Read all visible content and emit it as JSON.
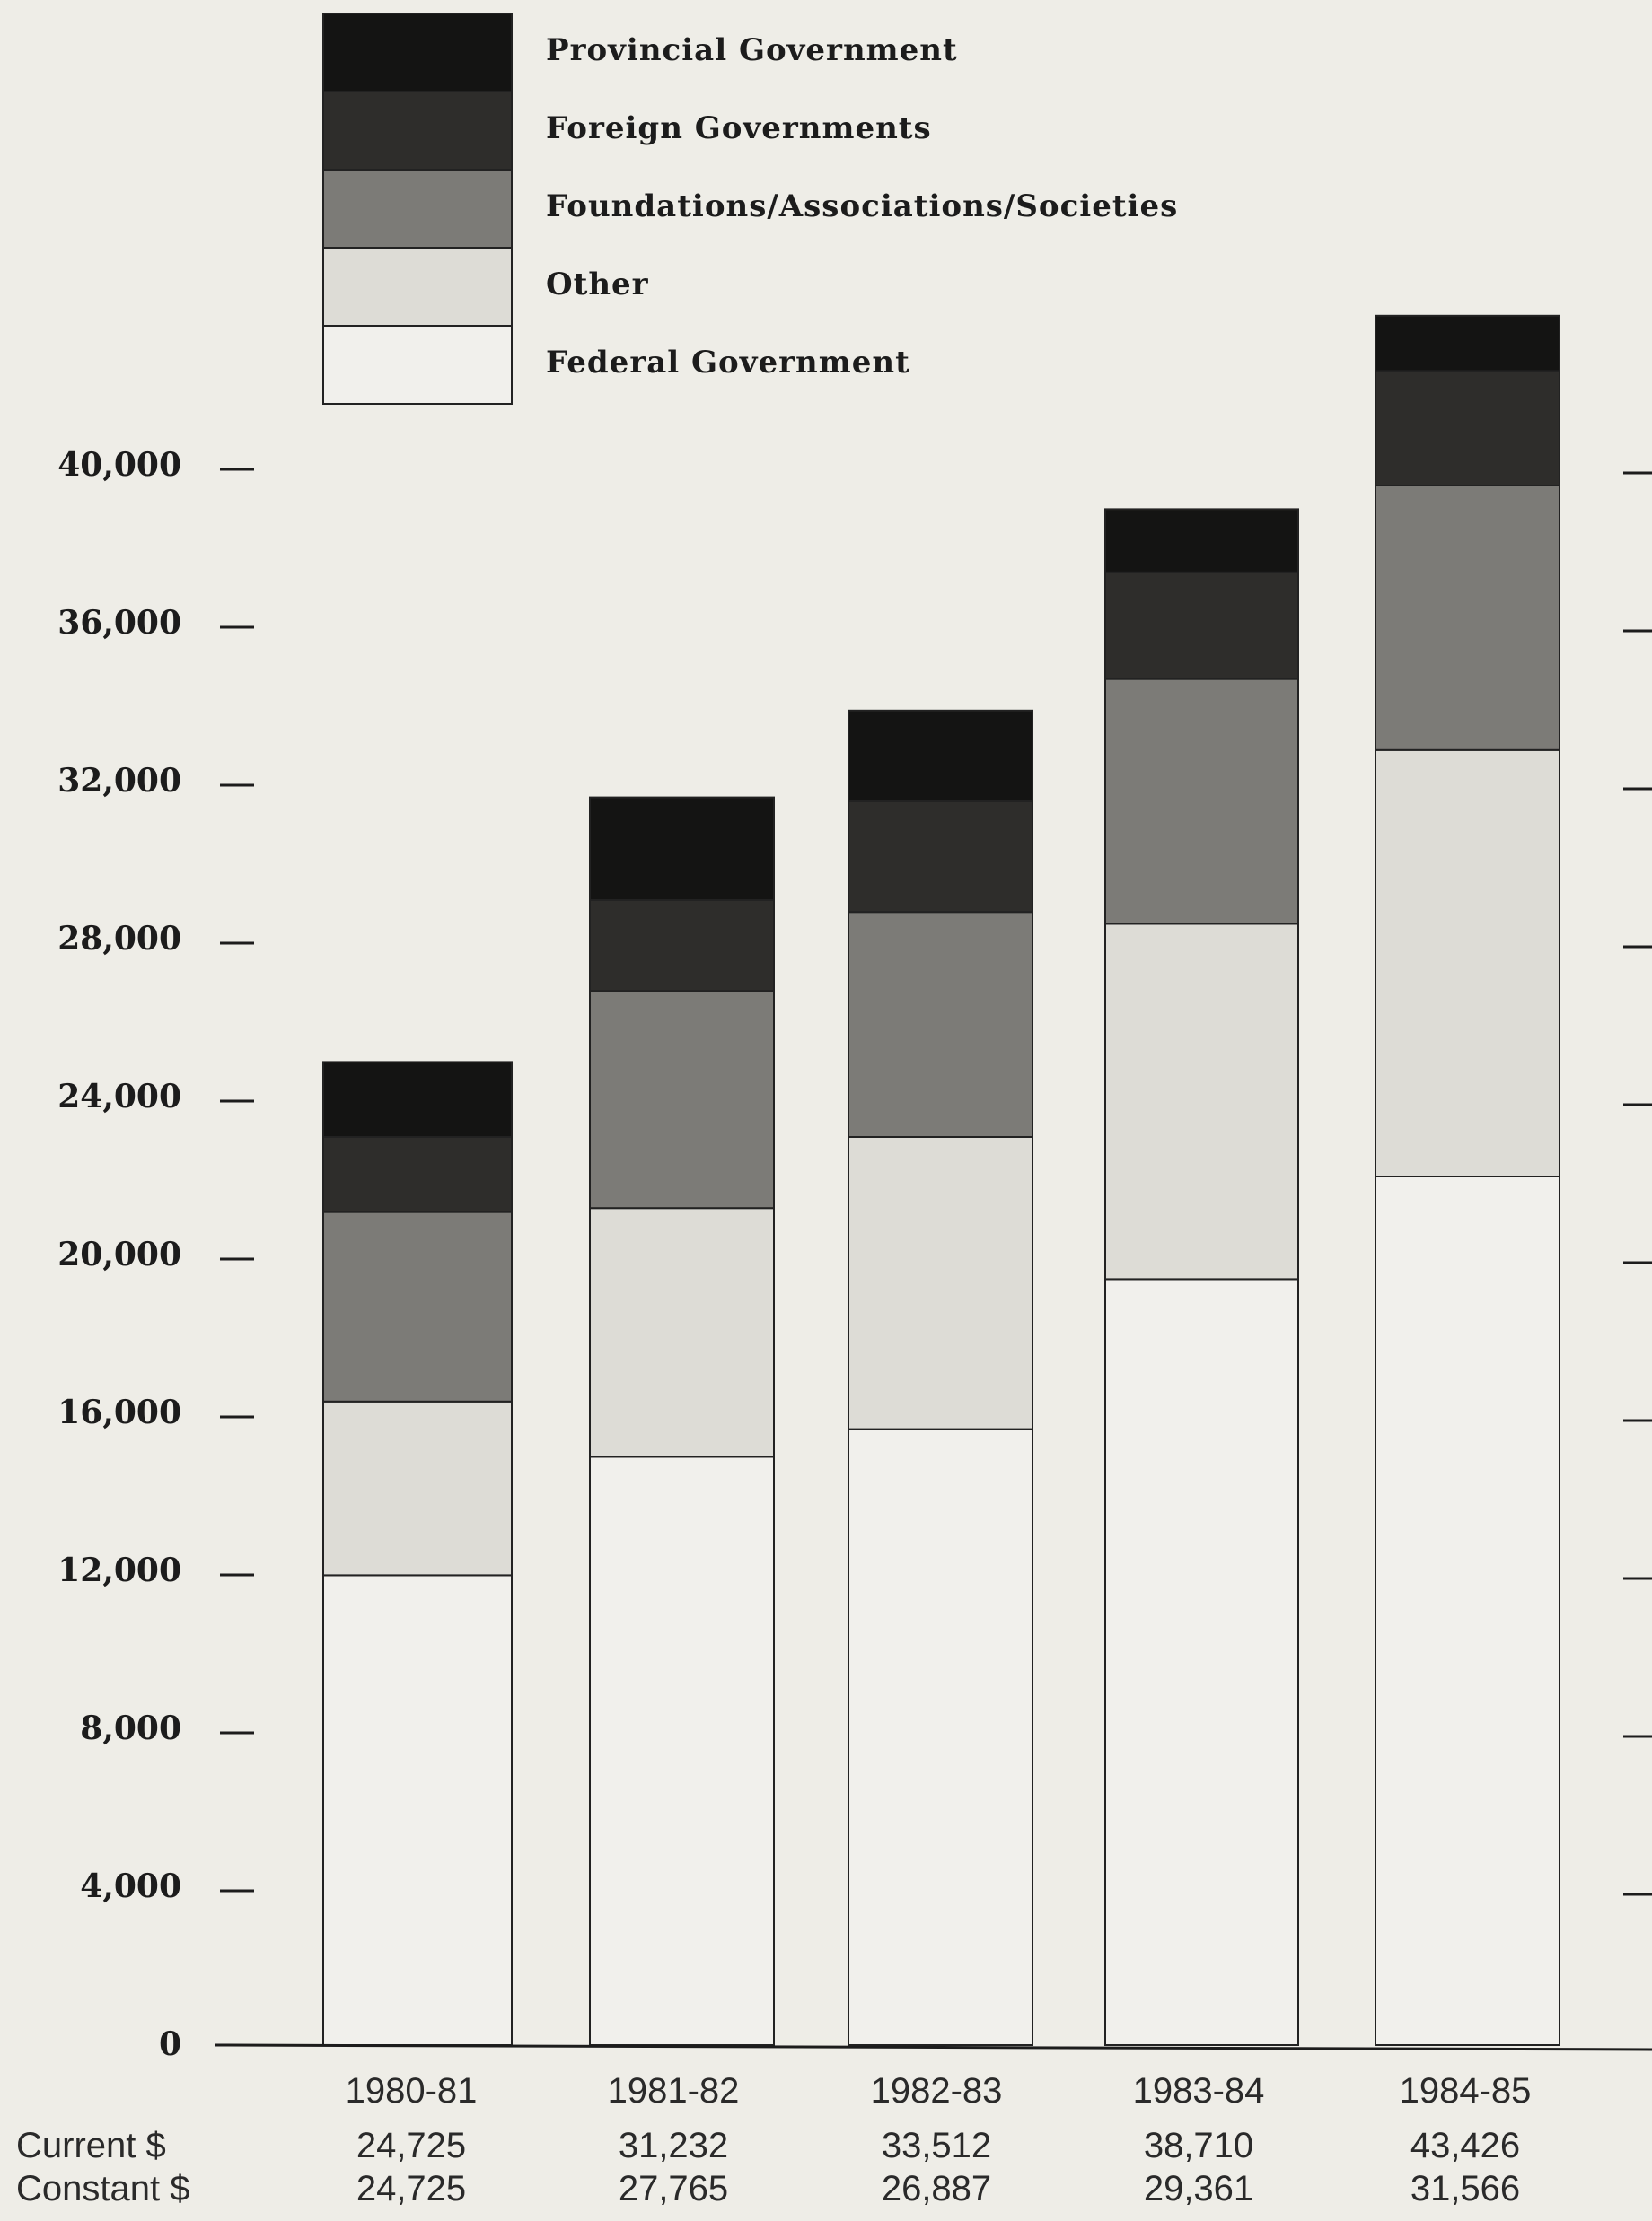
{
  "chart_data": {
    "type": "bar",
    "stacked": true,
    "categories": [
      "1980-81",
      "1981-82",
      "1982-83",
      "1983-84",
      "1984-85"
    ],
    "series": [
      {
        "name": "Federal Government",
        "color": "#f1f0ec",
        "values": [
          11900,
          14900,
          15600,
          19400,
          22000
        ]
      },
      {
        "name": "Other",
        "color": "#dddcd6",
        "values": [
          4400,
          6300,
          7400,
          9000,
          10800
        ]
      },
      {
        "name": "Foundations/Associations/Societies",
        "color": "#7c7b77",
        "values": [
          4800,
          5500,
          5700,
          6200,
          6700
        ]
      },
      {
        "name": "Foreign Governments",
        "color": "#2e2d2b",
        "values": [
          1900,
          2300,
          2800,
          2700,
          2900
        ]
      },
      {
        "name": "Provincial Government",
        "color": "#141413",
        "values": [
          1900,
          2600,
          2300,
          1600,
          1400
        ]
      }
    ],
    "legend_order": [
      "Provincial Government",
      "Foreign Governments",
      "Foundations/Associations/Societies",
      "Other",
      "Federal Government"
    ],
    "y_ticks": [
      "0",
      "4,000",
      "8,000",
      "12,000",
      "16,000",
      "20,000",
      "24,000",
      "28,000",
      "32,000",
      "36,000",
      "40,000"
    ],
    "y_tick_values": [
      0,
      4000,
      8000,
      12000,
      16000,
      20000,
      24000,
      28000,
      32000,
      36000,
      40000
    ],
    "ylim": [
      0,
      44000
    ],
    "legend_position": "top-left",
    "grid": false,
    "table": {
      "rows": [
        {
          "label": "Current $",
          "values": [
            "24,725",
            "31,232",
            "33,512",
            "38,710",
            "43,426"
          ]
        },
        {
          "label": "Constant $",
          "values": [
            "24,725",
            "27,765",
            "26,887",
            "29,361",
            "31,566"
          ]
        }
      ]
    }
  }
}
